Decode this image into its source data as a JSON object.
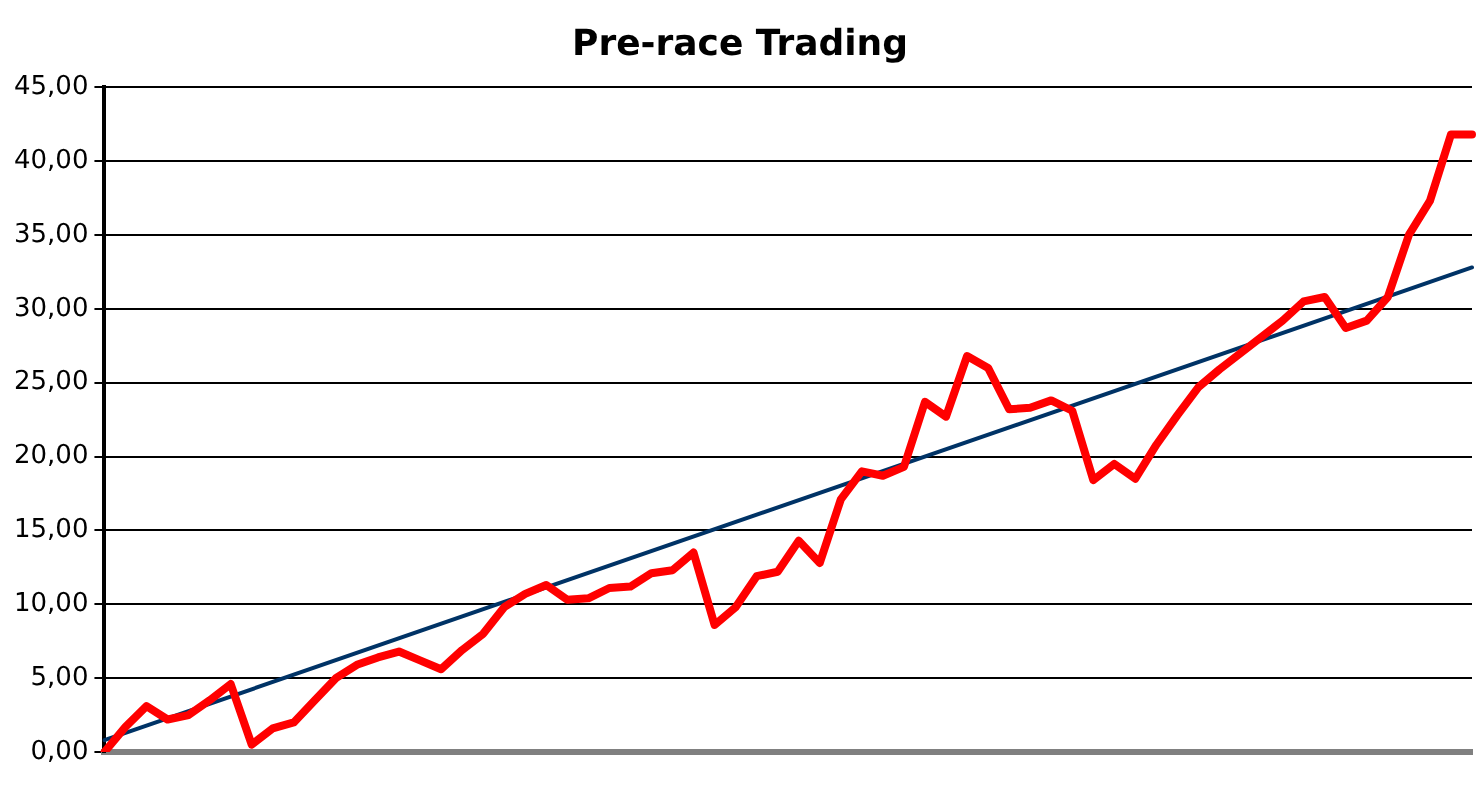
{
  "chart_data": {
    "type": "line",
    "title": "Pre-race Trading",
    "categories": [
      null,
      null,
      null,
      null,
      null,
      null,
      null,
      null,
      null,
      null,
      null,
      null,
      null,
      null,
      null,
      null,
      null,
      null,
      null,
      null,
      null,
      null,
      null,
      null,
      null,
      null,
      null,
      null,
      null,
      null,
      null,
      null,
      null,
      null,
      null,
      null,
      null,
      null,
      null,
      null,
      null,
      null,
      null,
      null,
      null,
      null,
      null,
      null,
      null,
      null,
      null,
      null,
      null,
      null,
      null,
      null,
      null,
      null,
      null,
      null,
      null,
      null,
      null,
      null,
      null,
      null
    ],
    "series": [
      {
        "color": "#ff0000",
        "values": [
          0.0,
          1.7,
          3.1,
          2.2,
          2.5,
          3.5,
          4.6,
          0.5,
          1.6,
          2.0,
          3.5,
          5.0,
          5.9,
          6.4,
          6.8,
          6.2,
          5.6,
          6.9,
          8.0,
          9.8,
          10.7,
          11.3,
          10.3,
          10.4,
          11.1,
          11.2,
          12.1,
          12.3,
          13.5,
          8.6,
          9.8,
          11.9,
          12.2,
          14.3,
          12.8,
          17.1,
          19.0,
          18.7,
          19.3,
          23.7,
          22.7,
          26.8,
          26.0,
          23.2,
          23.3,
          23.8,
          23.1,
          18.4,
          19.5,
          18.5,
          20.8,
          22.8,
          24.7,
          25.9,
          27.0,
          28.1,
          29.2,
          30.5,
          30.8,
          28.7,
          29.2,
          30.8,
          35.0,
          37.3,
          41.8,
          41.8
        ]
      },
      {
        "type": "line",
        "color": "#003366",
        "values": [
          0.8,
          null,
          null,
          null,
          null,
          null,
          null,
          null,
          null,
          null,
          null,
          null,
          null,
          null,
          null,
          null,
          null,
          null,
          null,
          null,
          null,
          null,
          null,
          null,
          null,
          null,
          null,
          null,
          null,
          null,
          null,
          null,
          null,
          null,
          null,
          null,
          null,
          null,
          null,
          null,
          null,
          null,
          null,
          null,
          null,
          null,
          null,
          null,
          null,
          null,
          null,
          null,
          null,
          null,
          null,
          null,
          null,
          null,
          null,
          null,
          null,
          null,
          null,
          null,
          null,
          32.8
        ]
      }
    ],
    "ylim": [
      0,
      45
    ],
    "yticks": [
      {
        "value": 0,
        "label": "0,00"
      },
      {
        "value": 5,
        "label": "5,00"
      },
      {
        "value": 10,
        "label": "10,00"
      },
      {
        "value": 15,
        "label": "15,00"
      },
      {
        "value": 20,
        "label": "20,00"
      },
      {
        "value": 25,
        "label": "25,00"
      },
      {
        "value": 30,
        "label": "30,00"
      },
      {
        "value": 35,
        "label": "35,00"
      },
      {
        "value": 40,
        "label": "40,00"
      },
      {
        "value": 45,
        "label": "45,00"
      }
    ],
    "grid": "y",
    "legend": false,
    "marker": "none",
    "line_style": "solid",
    "tick_labels": "y"
  }
}
